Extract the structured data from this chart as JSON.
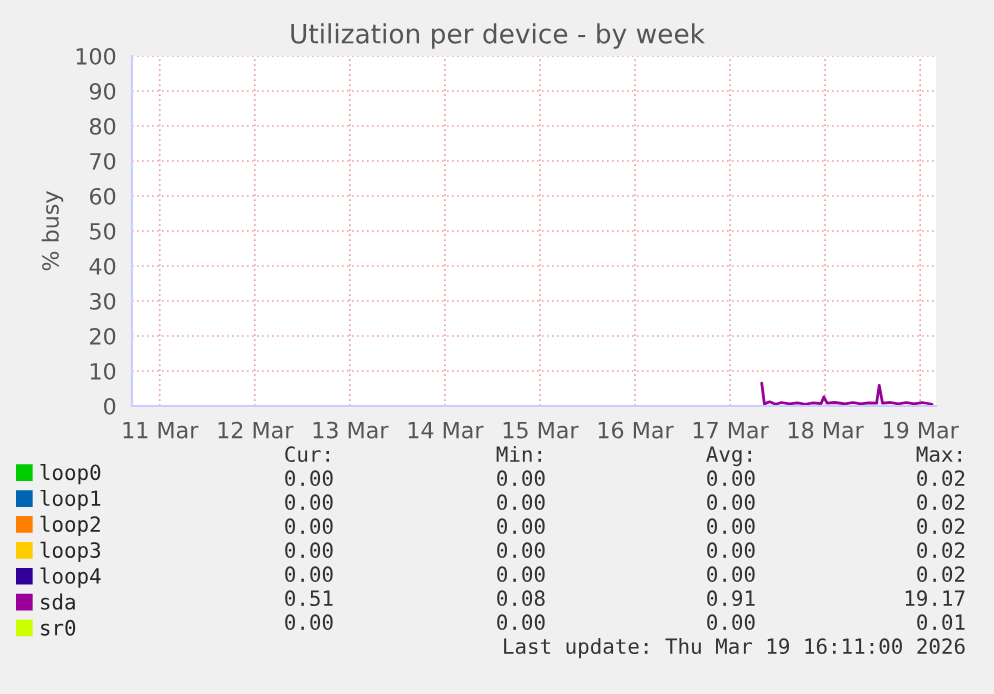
{
  "chart_data": {
    "type": "line",
    "title": "Utilization per device - by week",
    "ylabel": "% busy",
    "xlim": [
      "2026-03-11T05:00",
      "2026-03-19T16:00"
    ],
    "xticks": [
      {
        "value": "2026-03-11T12:00",
        "label": "11 Mar"
      },
      {
        "value": "2026-03-12T12:00",
        "label": "12 Mar"
      },
      {
        "value": "2026-03-13T12:00",
        "label": "13 Mar"
      },
      {
        "value": "2026-03-14T12:00",
        "label": "14 Mar"
      },
      {
        "value": "2026-03-15T12:00",
        "label": "15 Mar"
      },
      {
        "value": "2026-03-16T12:00",
        "label": "16 Mar"
      },
      {
        "value": "2026-03-17T12:00",
        "label": "17 Mar"
      },
      {
        "value": "2026-03-18T12:00",
        "label": "18 Mar"
      },
      {
        "value": "2026-03-19T12:00",
        "label": "19 Mar"
      }
    ],
    "ylim": [
      0,
      100
    ],
    "yticks": [
      0,
      10,
      20,
      30,
      40,
      50,
      60,
      70,
      80,
      90,
      100
    ],
    "grid": true,
    "legend": "bottom",
    "series": [
      {
        "name": "loop0",
        "color": "#00cc00"
      },
      {
        "name": "loop1",
        "color": "#0066b3"
      },
      {
        "name": "loop2",
        "color": "#ff8000"
      },
      {
        "name": "loop3",
        "color": "#ffcc00"
      },
      {
        "name": "loop4",
        "color": "#330099"
      },
      {
        "name": "sda",
        "color": "#990099",
        "x": [
          "2026-03-17T20:00",
          "2026-03-17T20:40",
          "2026-03-17T22:00",
          "2026-03-17T23:30",
          "2026-03-18T01:00",
          "2026-03-18T03:00",
          "2026-03-18T05:00",
          "2026-03-18T07:00",
          "2026-03-18T09:00",
          "2026-03-18T11:00",
          "2026-03-18T11:40",
          "2026-03-18T12:30",
          "2026-03-18T14:30",
          "2026-03-18T17:00",
          "2026-03-18T19:00",
          "2026-03-18T21:00",
          "2026-03-18T23:00",
          "2026-03-19T01:00",
          "2026-03-19T01:40",
          "2026-03-19T02:30",
          "2026-03-19T04:30",
          "2026-03-19T06:30",
          "2026-03-19T08:30",
          "2026-03-19T10:30",
          "2026-03-19T12:30",
          "2026-03-19T15:00"
        ],
        "values": [
          6.5,
          0.6,
          1.2,
          0.5,
          1.0,
          0.6,
          0.9,
          0.5,
          0.9,
          0.7,
          2.6,
          0.8,
          1.0,
          0.6,
          1.0,
          0.6,
          0.9,
          0.8,
          5.9,
          0.8,
          1.0,
          0.6,
          1.0,
          0.6,
          1.0,
          0.5
        ]
      },
      {
        "name": "sr0",
        "color": "#ccff00"
      }
    ],
    "annotations": [
      "Cur:",
      "Min:",
      "Avg:",
      "Max:",
      "0.00",
      "0.00",
      "0.00",
      "0.02",
      "0.00",
      "0.00",
      "0.00",
      "0.02",
      "0.00",
      "0.00",
      "0.00",
      "0.02",
      "0.00",
      "0.00",
      "0.00",
      "0.02",
      "0.00",
      "0.00",
      "0.00",
      "0.02",
      "0.51",
      "0.08",
      "0.91",
      "19.17",
      "0.00",
      "0.00",
      "0.00",
      "0.01",
      "Last update: Thu Mar 19 16:11:00 2026"
    ]
  }
}
